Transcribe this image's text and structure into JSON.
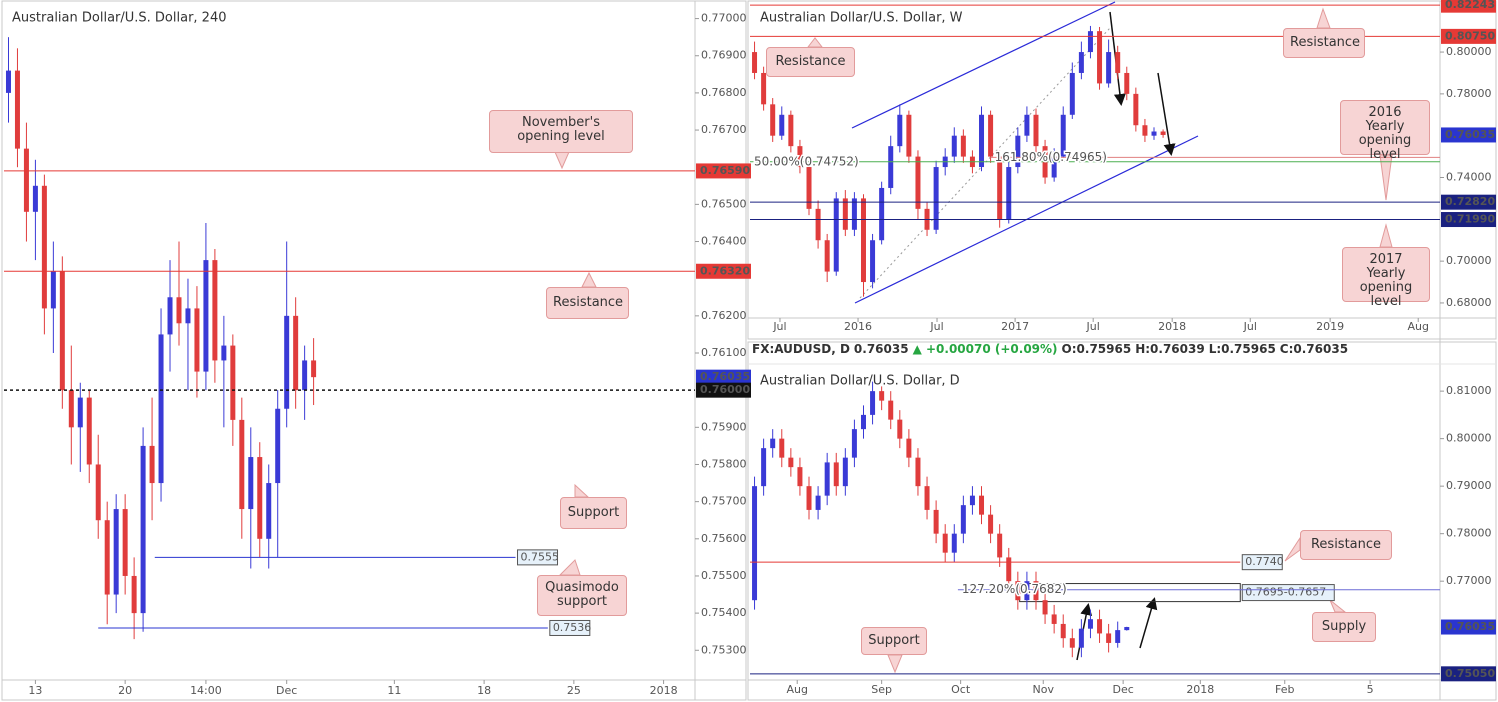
{
  "chart_data": [
    {
      "type": "candlestick",
      "title": "Australian Dollar/U.S. Dollar, 240",
      "up_color": "#3a3ad6",
      "down_color": "#e03c3c",
      "xlim": [
        -0.5,
        76.5
      ],
      "ylim": [
        0.7522,
        0.7705
      ],
      "xticks": [
        {
          "value": 3,
          "label": "13"
        },
        {
          "value": 13,
          "label": "20"
        },
        {
          "value": 22,
          "label": "14:00"
        },
        {
          "value": 31,
          "label": "Dec"
        },
        {
          "value": 43,
          "label": "11"
        },
        {
          "value": 53,
          "label": "18"
        },
        {
          "value": 63,
          "label": "25"
        },
        {
          "value": 73,
          "label": "2018"
        }
      ],
      "yticks": [
        {
          "value": 0.753,
          "label": "0.75300"
        },
        {
          "value": 0.754,
          "label": "0.75400"
        },
        {
          "value": 0.755,
          "label": "0.75500"
        },
        {
          "value": 0.756,
          "label": "0.75600"
        },
        {
          "value": 0.757,
          "label": "0.75700"
        },
        {
          "value": 0.758,
          "label": "0.75800"
        },
        {
          "value": 0.759,
          "label": "0.75900"
        },
        {
          "value": 0.761,
          "label": "0.76100"
        },
        {
          "value": 0.762,
          "label": "0.76200"
        },
        {
          "value": 0.764,
          "label": "0.76400"
        },
        {
          "value": 0.765,
          "label": "0.76500"
        },
        {
          "value": 0.767,
          "label": "0.76700"
        },
        {
          "value": 0.768,
          "label": "0.76800"
        },
        {
          "value": 0.769,
          "label": "0.76900"
        },
        {
          "value": 0.77,
          "label": "0.77000"
        }
      ],
      "candles": [
        [
          0.768,
          0.7695,
          0.7672,
          0.7686
        ],
        [
          0.7686,
          0.7692,
          0.766,
          0.7665
        ],
        [
          0.7665,
          0.7672,
          0.764,
          0.7648
        ],
        [
          0.7648,
          0.7662,
          0.7635,
          0.7655
        ],
        [
          0.7655,
          0.7658,
          0.7615,
          0.7622
        ],
        [
          0.7622,
          0.764,
          0.761,
          0.7632
        ],
        [
          0.7632,
          0.7636,
          0.7595,
          0.76
        ],
        [
          0.76,
          0.7612,
          0.758,
          0.759
        ],
        [
          0.759,
          0.7602,
          0.7578,
          0.7598
        ],
        [
          0.7598,
          0.76,
          0.7575,
          0.758
        ],
        [
          0.758,
          0.7588,
          0.756,
          0.7565
        ],
        [
          0.7565,
          0.757,
          0.7537,
          0.7545
        ],
        [
          0.7545,
          0.7572,
          0.754,
          0.7568
        ],
        [
          0.7568,
          0.7572,
          0.7545,
          0.755
        ],
        [
          0.755,
          0.7555,
          0.7533,
          0.754
        ],
        [
          0.754,
          0.759,
          0.7535,
          0.7585
        ],
        [
          0.7585,
          0.7598,
          0.7565,
          0.7575
        ],
        [
          0.7575,
          0.7622,
          0.757,
          0.7615
        ],
        [
          0.7615,
          0.7635,
          0.7605,
          0.7625
        ],
        [
          0.7625,
          0.764,
          0.7612,
          0.7618
        ],
        [
          0.7618,
          0.763,
          0.76,
          0.7622
        ],
        [
          0.7622,
          0.7628,
          0.7598,
          0.7605
        ],
        [
          0.7605,
          0.7645,
          0.76,
          0.7635
        ],
        [
          0.7635,
          0.7638,
          0.7602,
          0.7608
        ],
        [
          0.7608,
          0.762,
          0.759,
          0.7612
        ],
        [
          0.7612,
          0.7615,
          0.7585,
          0.7592
        ],
        [
          0.7592,
          0.7598,
          0.756,
          0.7568
        ],
        [
          0.7568,
          0.759,
          0.7552,
          0.7582
        ],
        [
          0.7582,
          0.7586,
          0.7555,
          0.756
        ],
        [
          0.756,
          0.758,
          0.7552,
          0.7575
        ],
        [
          0.7575,
          0.76,
          0.7555,
          0.7595
        ],
        [
          0.7595,
          0.764,
          0.759,
          0.762
        ],
        [
          0.762,
          0.7625,
          0.7595,
          0.76
        ],
        [
          0.76,
          0.7612,
          0.7592,
          0.7608
        ],
        [
          0.7608,
          0.7614,
          0.7596,
          0.76035
        ]
      ],
      "levels": [
        {
          "value": 0.7659,
          "label": "0.76590",
          "color": "#e53935",
          "line": "solid",
          "tag": "axis"
        },
        {
          "value": 0.7632,
          "label": "0.76320",
          "color": "#e53935",
          "line": "solid",
          "tag": "axis"
        },
        {
          "value": 0.76035,
          "label": "0.76035",
          "color": "#2a35d0",
          "line": "none",
          "tag": "axis"
        },
        {
          "value": 0.76,
          "label": "0.76000",
          "color": "#111111",
          "line": "dashed",
          "tag": "axis"
        },
        {
          "value": 0.7555,
          "label": "0.7555",
          "color": "#2a35d0",
          "line": "solid",
          "tag": "inline",
          "span": [
            16.3,
            56.5
          ]
        },
        {
          "value": 0.7536,
          "label": "0.7536",
          "color": "#2a35d0",
          "line": "solid",
          "tag": "inline",
          "span": [
            10,
            60.1
          ]
        }
      ],
      "callouts": [
        "November's opening level",
        "Resistance",
        "Support",
        "Quasimodo support"
      ]
    },
    {
      "type": "candlestick",
      "title": "Australian Dollar/U.S. Dollar, W",
      "up_color": "#3a3ad6",
      "down_color": "#e03c3c",
      "xlim": [
        -0.5,
        75.5
      ],
      "ylim": [
        0.6728,
        0.8249
      ],
      "xticks": [
        {
          "value": 2.8,
          "label": "Jul"
        },
        {
          "value": 11.4,
          "label": "2016"
        },
        {
          "value": 20.1,
          "label": "Jul"
        },
        {
          "value": 28.7,
          "label": "2017"
        },
        {
          "value": 37.3,
          "label": "Jul"
        },
        {
          "value": 46,
          "label": "2018"
        },
        {
          "value": 54.6,
          "label": "Jul"
        },
        {
          "value": 63.4,
          "label": "2019"
        },
        {
          "value": 73.1,
          "label": "Aug"
        }
      ],
      "yticks": [
        {
          "value": 0.68,
          "label": "0.68000"
        },
        {
          "value": 0.7,
          "label": "0.70000"
        },
        {
          "value": 0.74,
          "label": "0.74000"
        },
        {
          "value": 0.78,
          "label": "0.78000"
        },
        {
          "value": 0.8,
          "label": "0.80000"
        }
      ],
      "candles": [
        [
          0.8,
          0.805,
          0.787,
          0.79
        ],
        [
          0.79,
          0.793,
          0.772,
          0.775
        ],
        [
          0.775,
          0.778,
          0.757,
          0.76
        ],
        [
          0.76,
          0.774,
          0.758,
          0.77
        ],
        [
          0.77,
          0.772,
          0.752,
          0.755
        ],
        [
          0.755,
          0.758,
          0.742,
          0.745
        ],
        [
          0.745,
          0.748,
          0.722,
          0.725
        ],
        [
          0.725,
          0.729,
          0.706,
          0.71
        ],
        [
          0.71,
          0.713,
          0.69,
          0.695
        ],
        [
          0.695,
          0.733,
          0.693,
          0.73
        ],
        [
          0.73,
          0.734,
          0.712,
          0.715
        ],
        [
          0.715,
          0.733,
          0.712,
          0.73
        ],
        [
          0.73,
          0.732,
          0.683,
          0.69
        ],
        [
          0.69,
          0.713,
          0.687,
          0.71
        ],
        [
          0.71,
          0.738,
          0.708,
          0.735
        ],
        [
          0.735,
          0.76,
          0.732,
          0.755
        ],
        [
          0.755,
          0.775,
          0.752,
          0.77
        ],
        [
          0.77,
          0.772,
          0.747,
          0.75
        ],
        [
          0.75,
          0.753,
          0.72,
          0.725
        ],
        [
          0.725,
          0.728,
          0.712,
          0.715
        ],
        [
          0.715,
          0.748,
          0.713,
          0.745
        ],
        [
          0.745,
          0.754,
          0.741,
          0.75
        ],
        [
          0.75,
          0.764,
          0.747,
          0.76
        ],
        [
          0.76,
          0.763,
          0.747,
          0.75
        ],
        [
          0.75,
          0.753,
          0.742,
          0.745
        ],
        [
          0.745,
          0.774,
          0.743,
          0.77
        ],
        [
          0.77,
          0.772,
          0.747,
          0.75
        ],
        [
          0.75,
          0.753,
          0.716,
          0.72
        ],
        [
          0.72,
          0.748,
          0.718,
          0.745
        ],
        [
          0.745,
          0.764,
          0.742,
          0.76
        ],
        [
          0.76,
          0.774,
          0.757,
          0.77
        ],
        [
          0.77,
          0.773,
          0.752,
          0.755
        ],
        [
          0.755,
          0.758,
          0.737,
          0.74
        ],
        [
          0.74,
          0.754,
          0.738,
          0.75
        ],
        [
          0.75,
          0.774,
          0.748,
          0.77
        ],
        [
          0.77,
          0.795,
          0.768,
          0.79
        ],
        [
          0.79,
          0.805,
          0.787,
          0.8
        ],
        [
          0.8,
          0.8125,
          0.797,
          0.81
        ],
        [
          0.81,
          0.812,
          0.782,
          0.785
        ],
        [
          0.785,
          0.806,
          0.783,
          0.8
        ],
        [
          0.8,
          0.803,
          0.787,
          0.79
        ],
        [
          0.79,
          0.793,
          0.777,
          0.78
        ],
        [
          0.78,
          0.783,
          0.762,
          0.765
        ],
        [
          0.765,
          0.768,
          0.757,
          0.76
        ],
        [
          0.76,
          0.764,
          0.758,
          0.762
        ],
        [
          0.762,
          0.763,
          0.759,
          0.76035
        ]
      ],
      "levels": [
        {
          "value": 0.82243,
          "label": "0.82243",
          "color": "#e53935",
          "line": "solid",
          "tag": "axis"
        },
        {
          "value": 0.8075,
          "label": "0.80750",
          "color": "#e53935",
          "line": "solid",
          "tag": "axis"
        },
        {
          "value": 0.76035,
          "label": "0.76035",
          "color": "#2a35d0",
          "line": "none",
          "tag": "axis"
        },
        {
          "value": 0.7282,
          "label": "0.72820",
          "color": "#1a2180",
          "line": "solid",
          "tag": "axis"
        },
        {
          "value": 0.7199,
          "label": "0.71990",
          "color": "#1a2180",
          "line": "solid",
          "tag": "axis"
        },
        {
          "value": 0.74752,
          "label": "50.00%(0.74752)",
          "color": "#4caf50",
          "line": "solid",
          "tag": "text",
          "span": [
            -0.5,
            75.5
          ]
        },
        {
          "value": 0.74965,
          "label": "161.80%(0.74965)",
          "color": "#e08080",
          "line": "solid",
          "tag": "text",
          "span": [
            26,
            75.5
          ]
        }
      ],
      "callouts": [
        "Resistance",
        "Resistance",
        "2016 Yearly opening level",
        "2017 Yearly opening level"
      ]
    },
    {
      "type": "candlestick",
      "title": "Australian Dollar/U.S. Dollar, D",
      "up_color": "#3a3ad6",
      "down_color": "#e03c3c",
      "quote": {
        "symbol": "FX:AUDUSD, D",
        "last": "0.76035",
        "change": "▲ +0.00070 (+0.09%)",
        "open": "O:0.75965",
        "high": "H:0.76039",
        "low": "L:0.75965",
        "close": "C:0.76035"
      },
      "xlim": [
        -0.5,
        75.5
      ],
      "ylim": [
        0.7492,
        0.8155
      ],
      "xticks": [
        {
          "value": 4.7,
          "label": "Aug"
        },
        {
          "value": 14,
          "label": "Sep"
        },
        {
          "value": 22.7,
          "label": "Oct"
        },
        {
          "value": 31.8,
          "label": "Nov"
        },
        {
          "value": 40.6,
          "label": "Dec"
        },
        {
          "value": 49.1,
          "label": "2018"
        },
        {
          "value": 58.4,
          "label": "Feb"
        },
        {
          "value": 67.8,
          "label": "5"
        }
      ],
      "yticks": [
        {
          "value": 0.77,
          "label": "0.77000"
        },
        {
          "value": 0.78,
          "label": "0.78000"
        },
        {
          "value": 0.79,
          "label": "0.79000"
        },
        {
          "value": 0.8,
          "label": "0.80000"
        },
        {
          "value": 0.81,
          "label": "0.81000"
        }
      ],
      "candles": [
        [
          0.766,
          0.792,
          0.764,
          0.79
        ],
        [
          0.79,
          0.8,
          0.788,
          0.798
        ],
        [
          0.798,
          0.802,
          0.796,
          0.8
        ],
        [
          0.8,
          0.802,
          0.794,
          0.796
        ],
        [
          0.796,
          0.798,
          0.792,
          0.794
        ],
        [
          0.794,
          0.796,
          0.788,
          0.79
        ],
        [
          0.79,
          0.792,
          0.783,
          0.785
        ],
        [
          0.785,
          0.79,
          0.783,
          0.788
        ],
        [
          0.788,
          0.797,
          0.786,
          0.795
        ],
        [
          0.795,
          0.797,
          0.788,
          0.79
        ],
        [
          0.79,
          0.798,
          0.788,
          0.796
        ],
        [
          0.796,
          0.804,
          0.794,
          0.802
        ],
        [
          0.802,
          0.807,
          0.8,
          0.805
        ],
        [
          0.805,
          0.812,
          0.803,
          0.81
        ],
        [
          0.81,
          0.811,
          0.806,
          0.808
        ],
        [
          0.808,
          0.81,
          0.802,
          0.804
        ],
        [
          0.804,
          0.806,
          0.798,
          0.8
        ],
        [
          0.8,
          0.802,
          0.794,
          0.796
        ],
        [
          0.796,
          0.798,
          0.788,
          0.79
        ],
        [
          0.79,
          0.792,
          0.783,
          0.785
        ],
        [
          0.785,
          0.787,
          0.778,
          0.78
        ],
        [
          0.78,
          0.782,
          0.774,
          0.776
        ],
        [
          0.776,
          0.782,
          0.774,
          0.78
        ],
        [
          0.78,
          0.788,
          0.778,
          0.786
        ],
        [
          0.786,
          0.79,
          0.784,
          0.788
        ],
        [
          0.788,
          0.79,
          0.782,
          0.784
        ],
        [
          0.784,
          0.786,
          0.778,
          0.78
        ],
        [
          0.78,
          0.782,
          0.773,
          0.775
        ],
        [
          0.775,
          0.777,
          0.768,
          0.77
        ],
        [
          0.77,
          0.772,
          0.764,
          0.766
        ],
        [
          0.766,
          0.772,
          0.764,
          0.77
        ],
        [
          0.77,
          0.772,
          0.764,
          0.766
        ],
        [
          0.766,
          0.768,
          0.761,
          0.763
        ],
        [
          0.763,
          0.765,
          0.759,
          0.761
        ],
        [
          0.761,
          0.763,
          0.756,
          0.758
        ],
        [
          0.758,
          0.76,
          0.754,
          0.756
        ],
        [
          0.756,
          0.762,
          0.754,
          0.76
        ],
        [
          0.76,
          0.764,
          0.758,
          0.762
        ],
        [
          0.762,
          0.764,
          0.757,
          0.759
        ],
        [
          0.759,
          0.761,
          0.755,
          0.757
        ],
        [
          0.757,
          0.7615,
          0.756,
          0.7597
        ],
        [
          0.7597,
          0.7604,
          0.7596,
          0.76035
        ]
      ],
      "levels": [
        {
          "value": 0.774,
          "label": "0.7740",
          "color": "#e53935",
          "line": "solid",
          "tag": "inline",
          "span": [
            -0.5,
            53.5
          ]
        },
        {
          "value": 0.7682,
          "label": "127.20%(0.7682)",
          "color": "#6b6bd6",
          "line": "solid",
          "tag": "text",
          "span": [
            22.4,
            75.5
          ]
        },
        {
          "value": 0.76035,
          "label": "0.76035",
          "color": "#2a35d0",
          "line": "none",
          "tag": "axis"
        },
        {
          "value": 0.7505,
          "label": "0.75050",
          "color": "#1a2180",
          "line": "solid",
          "tag": "axis"
        }
      ],
      "zones": [
        {
          "from": 0.7657,
          "to": 0.7695,
          "label": "0.7695-0.7657",
          "span": [
            29.2,
            53.5
          ]
        }
      ],
      "callouts": [
        "Resistance",
        "Supply",
        "Support"
      ]
    }
  ]
}
